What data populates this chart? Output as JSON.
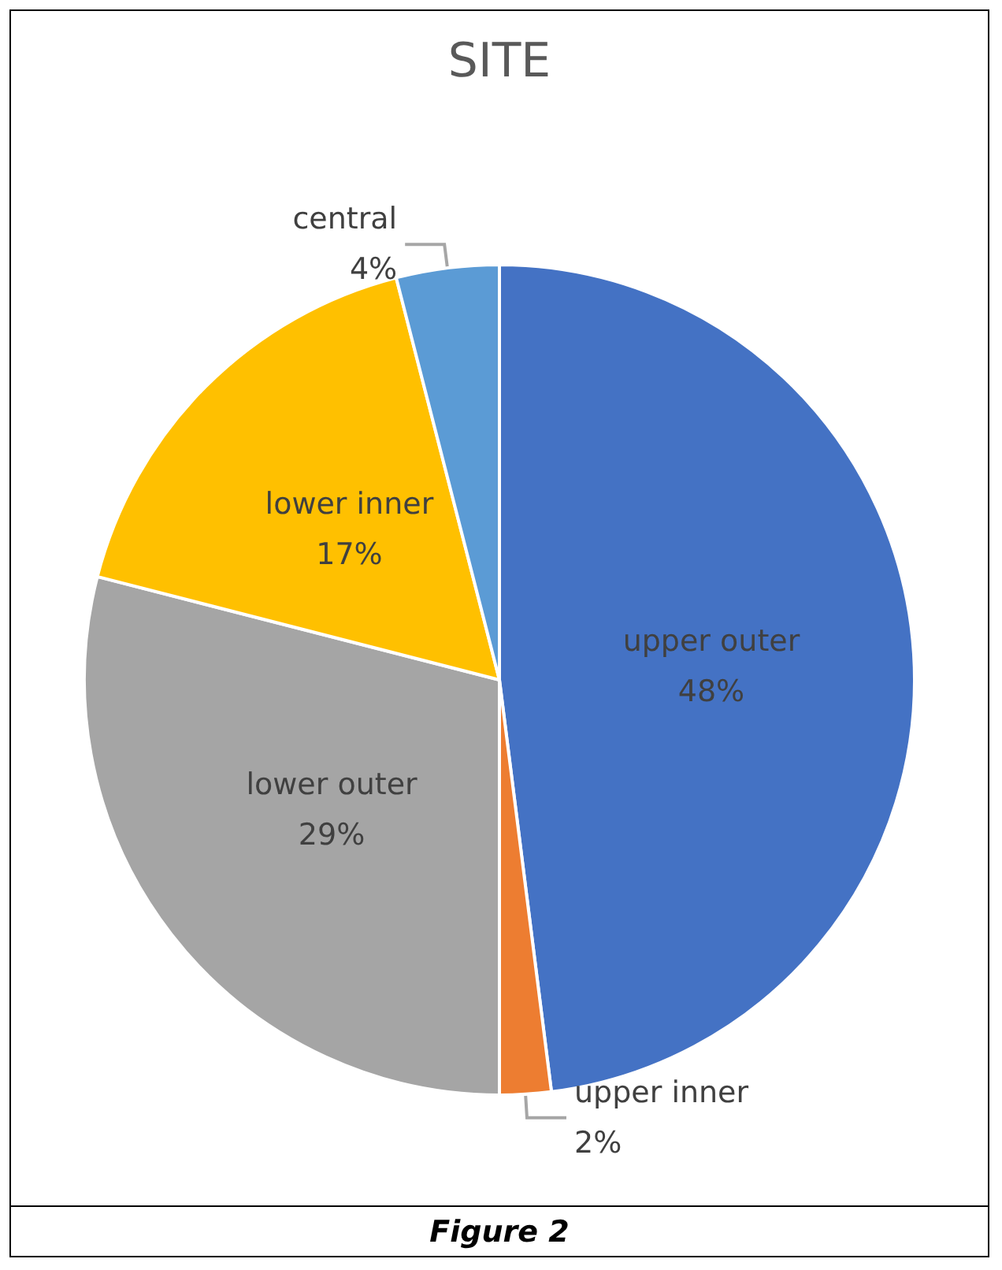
{
  "chart_data": {
    "type": "pie",
    "title": "SITE",
    "categories": [
      "upper outer",
      "upper inner",
      "lower outer",
      "lower inner",
      "central"
    ],
    "values": [
      48,
      2,
      29,
      17,
      4
    ],
    "colors": [
      "#4472c4",
      "#ed7d31",
      "#a5a5a5",
      "#ffc000",
      "#5b9bd5"
    ],
    "value_labels": [
      "48%",
      "2%",
      "29%",
      "17%",
      "4%"
    ],
    "annotations": [
      "Figure 2"
    ]
  }
}
